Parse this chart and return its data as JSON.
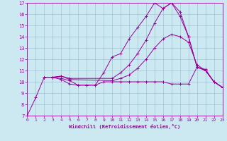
{
  "xlabel": "Windchill (Refroidissement éolien,°C)",
  "bg_color": "#cce8f0",
  "line_color": "#990099",
  "grid_color": "#99bbcc",
  "xlim": [
    0,
    23
  ],
  "ylim": [
    7,
    17
  ],
  "xticks": [
    0,
    1,
    2,
    3,
    4,
    5,
    6,
    7,
    8,
    9,
    10,
    11,
    12,
    13,
    14,
    15,
    16,
    17,
    18,
    19,
    20,
    21,
    22,
    23
  ],
  "yticks": [
    7,
    8,
    9,
    10,
    11,
    12,
    13,
    14,
    15,
    16,
    17
  ],
  "curves": [
    {
      "x": [
        0,
        1,
        2,
        3,
        4,
        5,
        6,
        7,
        8,
        9,
        10,
        11,
        12,
        13,
        14,
        15,
        16,
        17,
        18,
        19,
        20,
        21,
        22,
        23
      ],
      "y": [
        7.0,
        8.6,
        10.4,
        10.4,
        10.3,
        10.1,
        9.7,
        9.7,
        9.7,
        10.8,
        12.2,
        12.5,
        13.8,
        14.8,
        15.8,
        17.0,
        16.5,
        17.0,
        15.8,
        14.0,
        11.3,
        11.0,
        10.0,
        9.5
      ]
    },
    {
      "x": [
        2,
        3,
        4,
        5,
        10,
        11,
        12,
        13,
        14,
        15,
        16,
        17,
        18,
        19,
        20,
        21,
        22,
        23
      ],
      "y": [
        10.4,
        10.4,
        10.5,
        10.3,
        10.3,
        10.8,
        11.5,
        12.5,
        13.7,
        15.2,
        16.5,
        17.0,
        16.2,
        14.0,
        11.3,
        11.1,
        10.0,
        9.5
      ]
    },
    {
      "x": [
        2,
        3,
        4,
        5,
        10,
        11,
        12,
        13,
        14,
        15,
        16,
        17,
        18,
        19,
        20,
        21,
        22,
        23
      ],
      "y": [
        10.4,
        10.4,
        10.5,
        10.2,
        10.1,
        10.3,
        10.6,
        11.2,
        12.0,
        13.0,
        13.8,
        14.2,
        14.0,
        13.5,
        11.5,
        11.0,
        10.0,
        9.5
      ]
    },
    {
      "x": [
        2,
        3,
        4,
        5,
        6,
        7,
        8,
        9,
        10,
        11,
        12,
        13,
        14,
        15,
        16,
        17,
        18,
        19,
        20,
        21,
        22,
        23
      ],
      "y": [
        10.4,
        10.4,
        10.2,
        9.8,
        9.7,
        9.7,
        9.7,
        10.0,
        10.0,
        10.0,
        10.0,
        10.0,
        10.0,
        10.0,
        10.0,
        9.8,
        9.8,
        9.8,
        11.3,
        11.0,
        10.0,
        9.5
      ]
    }
  ]
}
